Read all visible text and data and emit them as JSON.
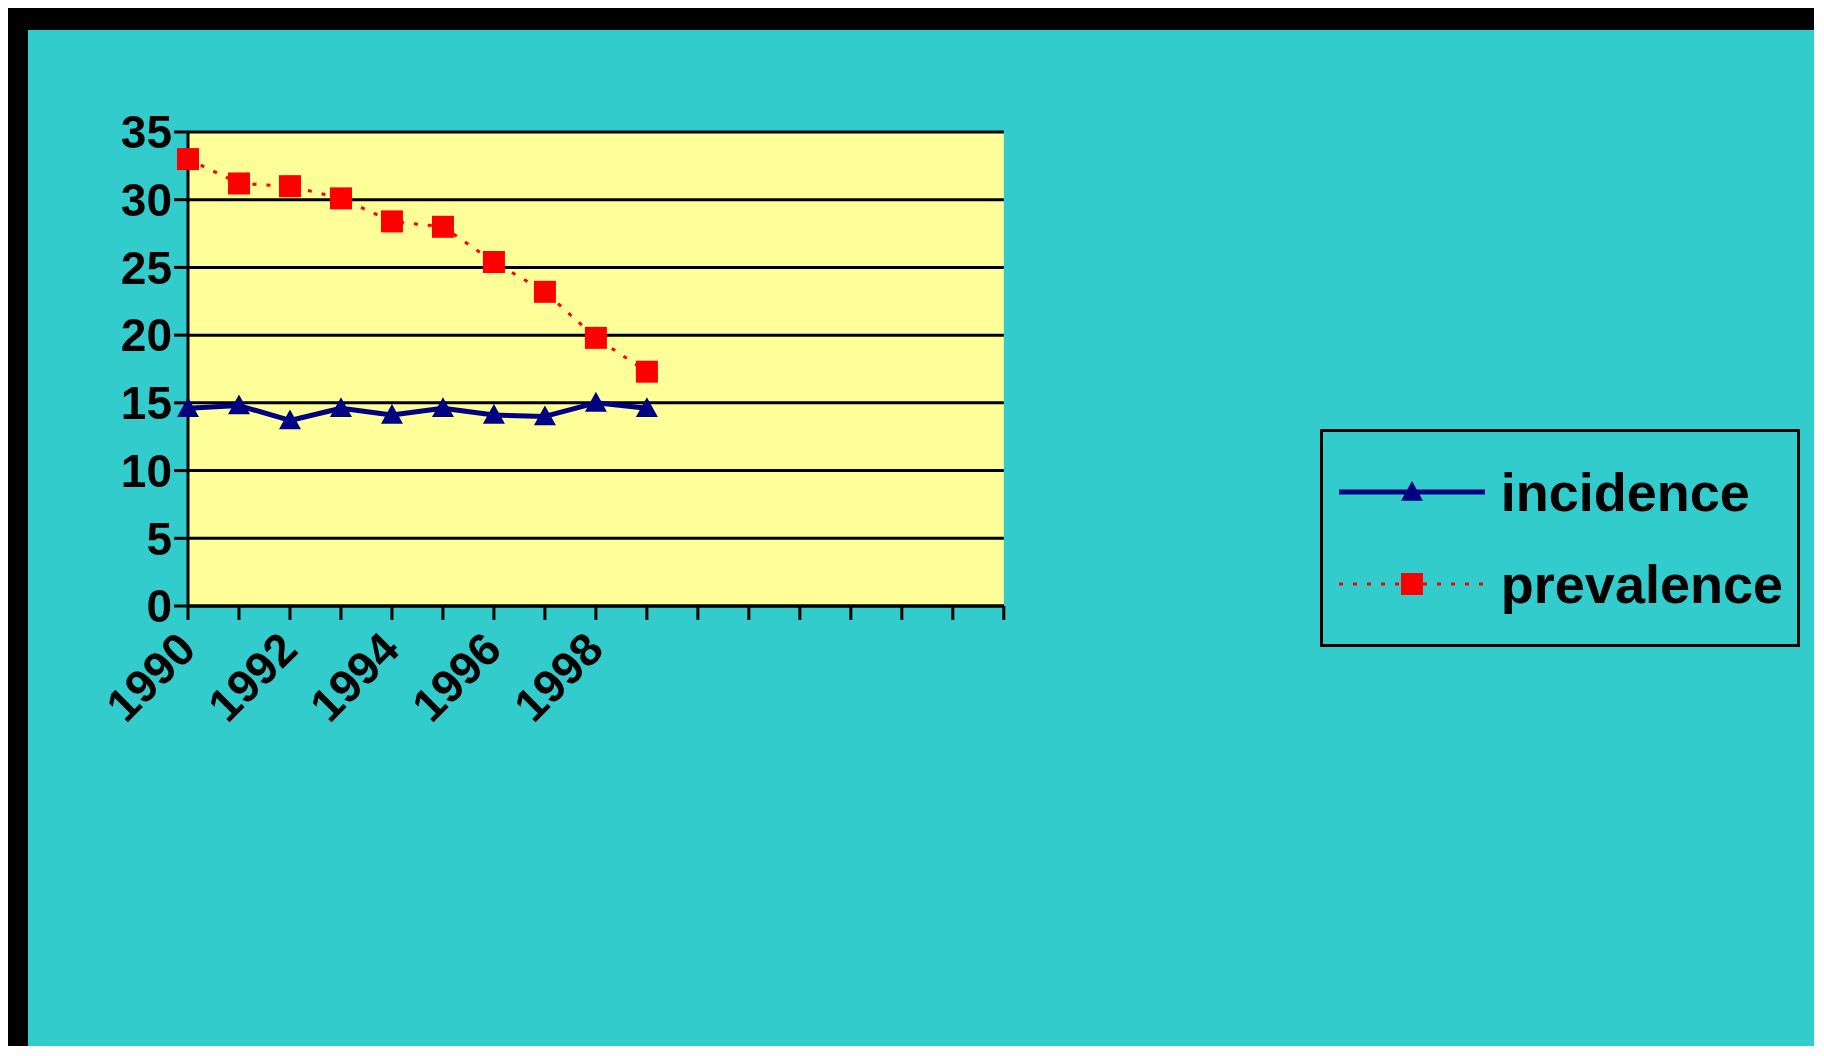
{
  "chart_data": {
    "type": "line",
    "categories": [
      "1990",
      null,
      "1992",
      null,
      "1994",
      null,
      "1996",
      null,
      "1998",
      null,
      null,
      null,
      null,
      null,
      null,
      null,
      null
    ],
    "series": [
      {
        "name": "incidence",
        "color": "#000080",
        "marker": "triangle",
        "line_style": "solid",
        "values": [
          14.6,
          14.8,
          13.7,
          14.6,
          14.1,
          14.6,
          14.1,
          14.0,
          15.0,
          14.6,
          null,
          null,
          null,
          null,
          null,
          null,
          null
        ]
      },
      {
        "name": "prevalence",
        "color": "#ff0000",
        "marker": "square",
        "line_style": "dotted",
        "values": [
          33,
          31.2,
          31.0,
          30.1,
          28.4,
          28.0,
          25.4,
          23.2,
          19.8,
          17.3,
          null,
          null,
          null,
          null,
          null,
          null,
          null
        ]
      }
    ],
    "ylim": [
      0,
      35
    ],
    "yticks": [
      0,
      5,
      10,
      15,
      20,
      25,
      30,
      35
    ],
    "grid": "y",
    "legend": "right"
  }
}
